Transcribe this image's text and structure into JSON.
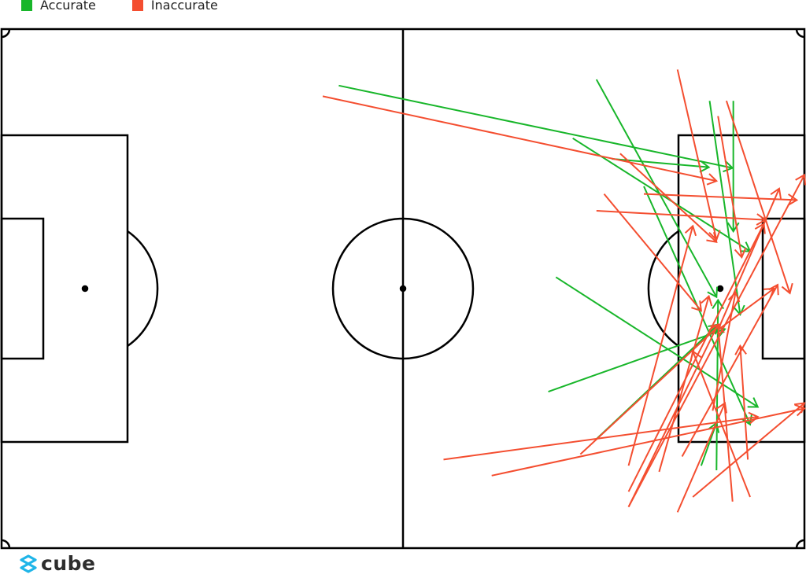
{
  "chart_data": {
    "type": "pass-map",
    "pitch": {
      "length_m": 105,
      "width_m": 68
    },
    "xlim": [
      0,
      105
    ],
    "ylim": [
      0,
      68
    ],
    "grid": false,
    "legend_placement": "top-left",
    "series": [
      {
        "name": "Accurate",
        "color": "#18b62a",
        "passes": [
          [
            44.1,
            7.4,
            95.6,
            18.2
          ],
          [
            74.7,
            14.3,
            97.9,
            29.1
          ],
          [
            77.8,
            6.6,
            93.5,
            35.1
          ],
          [
            79.8,
            17.0,
            92.5,
            18.1
          ],
          [
            95.7,
            9.4,
            95.7,
            26.5
          ],
          [
            92.6,
            9.4,
            96.6,
            37.4
          ],
          [
            72.5,
            32.5,
            98.9,
            49.5
          ],
          [
            71.5,
            47.5,
            94.6,
            39.3
          ],
          [
            77.8,
            53.7,
            93.7,
            38.7
          ],
          [
            91.5,
            57.2,
            93.5,
            51.6
          ],
          [
            93.5,
            57.8,
            93.7,
            35.5
          ],
          [
            84.0,
            20.6,
            97.9,
            51.8
          ]
        ]
      },
      {
        "name": "Inaccurate",
        "color": "#f44e30",
        "passes": [
          [
            42.0,
            8.8,
            93.5,
            19.9
          ],
          [
            88.4,
            5.3,
            93.5,
            27.6
          ],
          [
            94.8,
            9.4,
            103.1,
            34.6
          ],
          [
            93.7,
            11.4,
            96.8,
            29.9
          ],
          [
            84.0,
            21.6,
            104.0,
            22.4
          ],
          [
            77.8,
            23.8,
            99.9,
            25.0
          ],
          [
            80.9,
            16.3,
            93.5,
            27.9
          ],
          [
            78.8,
            21.6,
            91.5,
            36.9
          ],
          [
            82.0,
            62.6,
            105.0,
            19.1
          ],
          [
            57.8,
            56.4,
            98.9,
            50.8
          ],
          [
            64.1,
            58.5,
            105.0,
            49.7
          ],
          [
            90.4,
            61.3,
            105.0,
            49.0
          ],
          [
            95.6,
            61.9,
            93.7,
            38.7
          ],
          [
            97.9,
            61.3,
            90.4,
            42.2
          ],
          [
            88.4,
            63.3,
            94.6,
            49.0
          ],
          [
            82.0,
            62.6,
            93.7,
            38.7
          ],
          [
            75.7,
            55.7,
            94.0,
            38.7
          ],
          [
            82.0,
            57.2,
            90.4,
            25.8
          ],
          [
            82.0,
            60.6,
            99.7,
            25.5
          ],
          [
            97.6,
            56.4,
            96.6,
            41.5
          ],
          [
            93.7,
            39.4,
            101.7,
            20.9
          ],
          [
            93.7,
            39.4,
            101.0,
            34.0
          ],
          [
            86.0,
            58.0,
            92.5,
            35.0
          ],
          [
            93.0,
            50.0,
            96.0,
            34.5
          ],
          [
            89.0,
            56.0,
            101.5,
            33.5
          ]
        ]
      }
    ]
  },
  "legend": [
    {
      "label": "Accurate",
      "color": "#18b62a"
    },
    {
      "label": "Inaccurate",
      "color": "#f44e30"
    }
  ],
  "logo": {
    "text": "cube",
    "color": "#1fb5e8"
  }
}
